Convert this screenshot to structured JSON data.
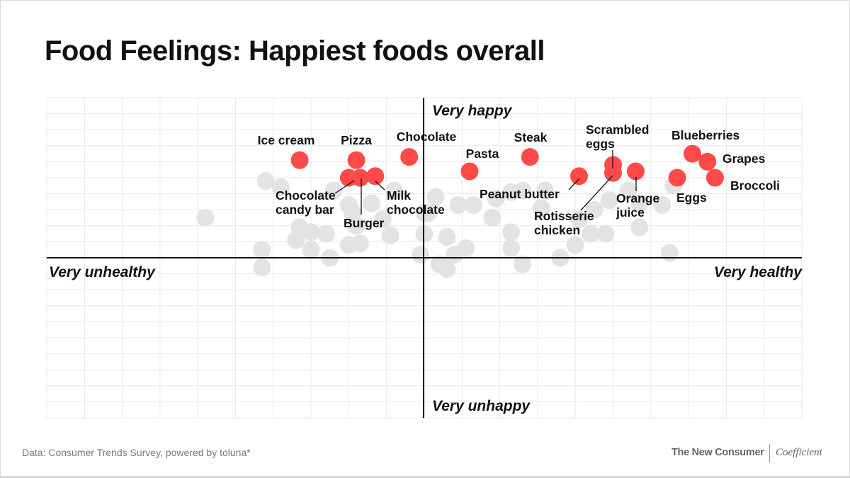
{
  "title": "Food Feelings: Happiest foods overall",
  "footer": {
    "source": "Data: Consumer Trends Survey, powered by toluna*",
    "brand_left": "The New Consumer",
    "brand_right": "Coefficient"
  },
  "chart_data": {
    "type": "scatter",
    "title": "Food Feelings: Happiest foods overall",
    "x_axis": {
      "negative_label": "Very unhealthy",
      "positive_label": "Very healthy",
      "range": [
        -1,
        1
      ]
    },
    "y_axis": {
      "negative_label": "Very unhappy",
      "positive_label": "Very happy",
      "range": [
        -1,
        1
      ]
    },
    "grid": true,
    "colors": {
      "highlight": "#ff4a47",
      "other": "#e3e3e3",
      "axis": "#111111",
      "grid": "#e8e8e8"
    },
    "highlighted": [
      {
        "name": "Ice cream",
        "x": -0.33,
        "y": 0.61
      },
      {
        "name": "Pizza",
        "x": -0.18,
        "y": 0.61
      },
      {
        "name": "Chocolate candy bar",
        "x": -0.2,
        "y": 0.5
      },
      {
        "name": "Burger",
        "x": -0.17,
        "y": 0.5
      },
      {
        "name": "Milk chocolate",
        "x": -0.13,
        "y": 0.51
      },
      {
        "name": "Chocolate",
        "x": -0.04,
        "y": 0.63
      },
      {
        "name": "Pasta",
        "x": 0.12,
        "y": 0.54
      },
      {
        "name": "Steak",
        "x": 0.28,
        "y": 0.63
      },
      {
        "name": "Peanut butter",
        "x": 0.41,
        "y": 0.51
      },
      {
        "name": "Scrambled eggs",
        "x": 0.5,
        "y": 0.58
      },
      {
        "name": "Rotisserie chicken",
        "x": 0.5,
        "y": 0.53
      },
      {
        "name": "Orange juice",
        "x": 0.56,
        "y": 0.54
      },
      {
        "name": "Eggs",
        "x": 0.67,
        "y": 0.5
      },
      {
        "name": "Blueberries",
        "x": 0.71,
        "y": 0.65
      },
      {
        "name": "Grapes",
        "x": 0.75,
        "y": 0.6
      },
      {
        "name": "Broccoli",
        "x": 0.77,
        "y": 0.5
      }
    ],
    "others": [
      [
        -0.58,
        0.25
      ],
      [
        -0.42,
        0.48
      ],
      [
        -0.38,
        0.44
      ],
      [
        -0.43,
        0.05
      ],
      [
        -0.43,
        -0.06
      ],
      [
        -0.33,
        0.19
      ],
      [
        -0.34,
        0.11
      ],
      [
        -0.3,
        0.16
      ],
      [
        -0.26,
        0.15
      ],
      [
        -0.3,
        0.05
      ],
      [
        -0.25,
        0.0
      ],
      [
        -0.24,
        0.42
      ],
      [
        -0.2,
        0.33
      ],
      [
        -0.19,
        0.28
      ],
      [
        -0.18,
        0.2
      ],
      [
        -0.17,
        0.09
      ],
      [
        -0.2,
        0.08
      ],
      [
        -0.14,
        0.34
      ],
      [
        -0.11,
        0.24
      ],
      [
        -0.09,
        0.14
      ],
      [
        -0.08,
        0.42
      ],
      [
        0.0,
        0.28
      ],
      [
        0.0,
        0.15
      ],
      [
        -0.01,
        0.02
      ],
      [
        0.03,
        0.38
      ],
      [
        0.01,
        0.28
      ],
      [
        0.06,
        0.13
      ],
      [
        0.04,
        -0.04
      ],
      [
        0.06,
        -0.07
      ],
      [
        0.08,
        0.02
      ],
      [
        0.11,
        0.06
      ],
      [
        0.09,
        0.33
      ],
      [
        0.13,
        0.33
      ],
      [
        0.19,
        0.37
      ],
      [
        0.18,
        0.25
      ],
      [
        0.23,
        0.41
      ],
      [
        0.26,
        0.42
      ],
      [
        0.32,
        0.42
      ],
      [
        0.31,
        0.31
      ],
      [
        0.23,
        0.16
      ],
      [
        0.23,
        0.06
      ],
      [
        0.26,
        -0.04
      ],
      [
        0.36,
        0.0
      ],
      [
        0.4,
        0.08
      ],
      [
        0.41,
        0.24
      ],
      [
        0.44,
        0.15
      ],
      [
        0.48,
        0.15
      ],
      [
        0.45,
        0.3
      ],
      [
        0.49,
        0.36
      ],
      [
        0.57,
        0.34
      ],
      [
        0.57,
        0.19
      ],
      [
        0.63,
        0.33
      ],
      [
        0.65,
        0.03
      ],
      [
        0.66,
        0.45
      ],
      [
        0.54,
        0.42
      ]
    ],
    "labels": {
      "ice_cream": "Ice cream",
      "pizza": "Pizza",
      "chocolate": "Chocolate",
      "pasta": "Pasta",
      "steak": "Steak",
      "scrambled_1": "Scrambled",
      "scrambled_2": "eggs",
      "blueberries": "Blueberries",
      "grapes": "Grapes",
      "broccoli": "Broccoli",
      "eggs": "Eggs",
      "orange_1": "Orange",
      "orange_2": "juice",
      "rotisserie_1": "Rotisserie",
      "rotisserie_2": "chicken",
      "peanut": "Peanut butter",
      "candy_1": "Chocolate",
      "candy_2": "candy bar",
      "burger": "Burger",
      "milk_1": "Milk",
      "milk_2": "chocolate"
    }
  }
}
